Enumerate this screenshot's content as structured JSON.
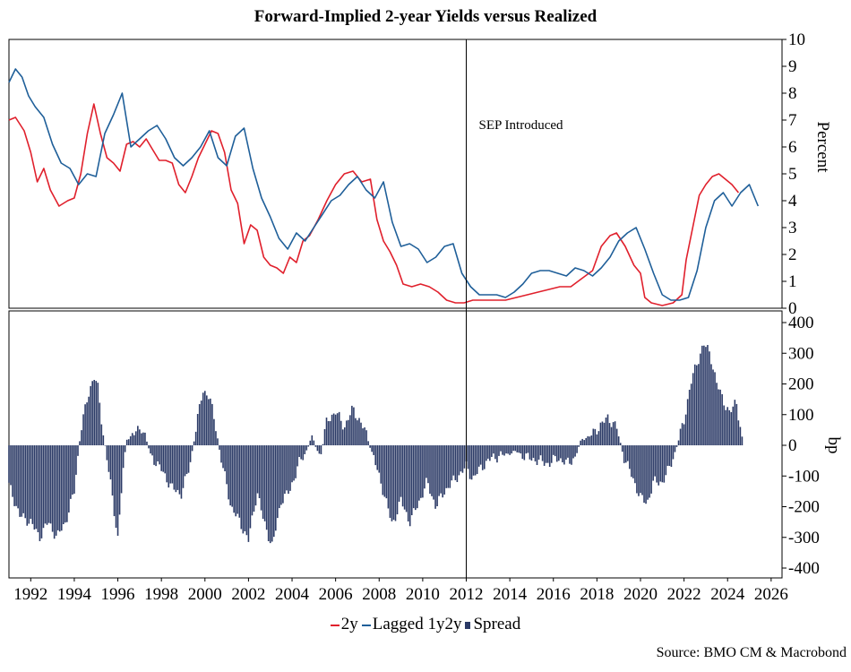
{
  "chart_data": {
    "title": "Forward-Implied 2-year Yields versus Realized",
    "source": "Source: BMO CM & Macrobond",
    "annotation": "SEP Introduced",
    "annotation_x": 2012.0,
    "x_ticks": [
      "1992",
      "1994",
      "1996",
      "1998",
      "2000",
      "2002",
      "2004",
      "2006",
      "2008",
      "2010",
      "2012",
      "2014",
      "2016",
      "2018",
      "2020",
      "2022",
      "2024",
      "2026"
    ],
    "xlim": [
      1991.0,
      2026.5
    ],
    "top_panel": {
      "type": "line",
      "ylabel": "Percent",
      "ylim": [
        0,
        10
      ],
      "y_ticks": [
        "0",
        "1",
        "2",
        "3",
        "4",
        "5",
        "6",
        "7",
        "8",
        "9",
        "10"
      ],
      "series": [
        {
          "name": "2y",
          "color": "#e0202c",
          "x": [
            1991.0,
            1991.3,
            1991.7,
            1992.0,
            1992.3,
            1992.6,
            1992.9,
            1993.3,
            1993.7,
            1994.0,
            1994.3,
            1994.6,
            1994.9,
            1995.2,
            1995.5,
            1995.8,
            1996.1,
            1996.4,
            1996.7,
            1997.0,
            1997.3,
            1997.6,
            1997.9,
            1998.2,
            1998.5,
            1998.8,
            1999.1,
            1999.4,
            1999.7,
            2000.0,
            2000.3,
            2000.6,
            2000.9,
            2001.2,
            2001.5,
            2001.8,
            2002.1,
            2002.4,
            2002.7,
            2003.0,
            2003.3,
            2003.6,
            2003.9,
            2004.2,
            2004.5,
            2004.8,
            2005.2,
            2005.6,
            2006.0,
            2006.4,
            2006.8,
            2007.2,
            2007.6,
            2007.9,
            2008.2,
            2008.5,
            2008.8,
            2009.1,
            2009.5,
            2009.9,
            2010.3,
            2010.7,
            2011.1,
            2011.5,
            2011.9,
            2012.3,
            2012.8,
            2013.3,
            2013.8,
            2014.3,
            2014.8,
            2015.3,
            2015.8,
            2016.3,
            2016.8,
            2017.3,
            2017.8,
            2018.2,
            2018.6,
            2018.9,
            2019.3,
            2019.7,
            2020.0,
            2020.2,
            2020.5,
            2021.0,
            2021.5,
            2021.9,
            2022.1,
            2022.4,
            2022.7,
            2023.0,
            2023.3,
            2023.6,
            2023.9,
            2024.2,
            2024.5
          ],
          "values": [
            7.0,
            7.1,
            6.6,
            5.8,
            4.7,
            5.2,
            4.4,
            3.8,
            4.0,
            4.1,
            5.0,
            6.5,
            7.6,
            6.5,
            5.6,
            5.4,
            5.1,
            6.1,
            6.2,
            6.0,
            6.3,
            5.9,
            5.5,
            5.5,
            5.4,
            4.6,
            4.3,
            4.9,
            5.6,
            6.1,
            6.6,
            6.5,
            5.8,
            4.4,
            3.9,
            2.4,
            3.1,
            2.9,
            1.9,
            1.6,
            1.5,
            1.3,
            1.9,
            1.7,
            2.5,
            2.7,
            3.3,
            4.0,
            4.6,
            5.0,
            5.1,
            4.7,
            4.8,
            3.3,
            2.5,
            2.1,
            1.6,
            0.9,
            0.8,
            0.9,
            0.8,
            0.6,
            0.3,
            0.2,
            0.2,
            0.3,
            0.3,
            0.3,
            0.3,
            0.4,
            0.5,
            0.6,
            0.7,
            0.8,
            0.8,
            1.1,
            1.4,
            2.3,
            2.7,
            2.8,
            2.3,
            1.6,
            1.3,
            0.4,
            0.2,
            0.1,
            0.2,
            0.5,
            1.8,
            3.0,
            4.2,
            4.6,
            4.9,
            5.0,
            4.8,
            4.6,
            4.3
          ]
        },
        {
          "name": "Lagged 1y2y",
          "color": "#1f5f99",
          "x": [
            1991.0,
            1991.3,
            1991.6,
            1991.9,
            1992.2,
            1992.6,
            1993.0,
            1993.4,
            1993.8,
            1994.2,
            1994.6,
            1995.0,
            1995.4,
            1995.8,
            1996.2,
            1996.6,
            1997.0,
            1997.4,
            1997.8,
            1998.2,
            1998.6,
            1999.0,
            1999.4,
            1999.8,
            2000.2,
            2000.6,
            2001.0,
            2001.4,
            2001.8,
            2002.2,
            2002.6,
            2003.0,
            2003.4,
            2003.8,
            2004.2,
            2004.6,
            2005.0,
            2005.4,
            2005.8,
            2006.2,
            2006.6,
            2007.0,
            2007.4,
            2007.8,
            2008.2,
            2008.6,
            2009.0,
            2009.4,
            2009.8,
            2010.2,
            2010.6,
            2011.0,
            2011.4,
            2011.8,
            2012.2,
            2012.6,
            2013.0,
            2013.4,
            2013.8,
            2014.2,
            2014.6,
            2015.0,
            2015.4,
            2015.8,
            2016.2,
            2016.6,
            2017.0,
            2017.4,
            2017.8,
            2018.2,
            2018.6,
            2019.0,
            2019.4,
            2019.8,
            2020.2,
            2020.6,
            2021.0,
            2021.4,
            2021.8,
            2022.2,
            2022.6,
            2023.0,
            2023.4,
            2023.8,
            2024.2,
            2024.6,
            2025.0,
            2025.4
          ],
          "values": [
            8.4,
            8.9,
            8.6,
            7.9,
            7.5,
            7.1,
            6.1,
            5.4,
            5.2,
            4.6,
            5.0,
            4.9,
            6.5,
            7.2,
            8.0,
            6.0,
            6.3,
            6.6,
            6.8,
            6.3,
            5.6,
            5.3,
            5.6,
            6.0,
            6.6,
            5.6,
            5.3,
            6.4,
            6.7,
            5.2,
            4.1,
            3.4,
            2.6,
            2.2,
            2.8,
            2.5,
            3.0,
            3.5,
            4.0,
            4.2,
            4.6,
            4.9,
            4.4,
            4.1,
            4.7,
            3.2,
            2.3,
            2.4,
            2.2,
            1.7,
            1.9,
            2.3,
            2.4,
            1.3,
            0.8,
            0.5,
            0.5,
            0.5,
            0.4,
            0.6,
            0.9,
            1.3,
            1.4,
            1.4,
            1.3,
            1.2,
            1.5,
            1.4,
            1.2,
            1.5,
            1.9,
            2.5,
            2.8,
            3.0,
            2.2,
            1.3,
            0.5,
            0.3,
            0.3,
            0.4,
            1.4,
            3.0,
            4.0,
            4.3,
            3.8,
            4.3,
            4.6,
            3.8
          ]
        }
      ]
    },
    "bottom_panel": {
      "type": "bar",
      "ylabel": "bp",
      "ylim": [
        -410,
        410
      ],
      "y_ticks": [
        "400",
        "300",
        "200",
        "100",
        "0",
        "-100",
        "-200",
        "-300",
        "-400"
      ],
      "series": [
        {
          "name": "Spread",
          "color": "#2b3a66",
          "anchors": [
            [
              1991.0,
              -130
            ],
            [
              1991.5,
              -230
            ],
            [
              1992.0,
              -250
            ],
            [
              1992.4,
              -300
            ],
            [
              1992.8,
              -250
            ],
            [
              1993.2,
              -300
            ],
            [
              1993.6,
              -250
            ],
            [
              1994.0,
              -150
            ],
            [
              1994.15,
              -50
            ],
            [
              1994.3,
              50
            ],
            [
              1994.6,
              150
            ],
            [
              1994.9,
              230
            ],
            [
              1995.1,
              180
            ],
            [
              1995.3,
              50
            ],
            [
              1995.5,
              -40
            ],
            [
              1995.8,
              -200
            ],
            [
              1996.0,
              -300
            ],
            [
              1996.2,
              -120
            ],
            [
              1996.4,
              20
            ],
            [
              1996.8,
              40
            ],
            [
              1997.1,
              60
            ],
            [
              1997.3,
              20
            ],
            [
              1997.5,
              -30
            ],
            [
              1998.0,
              -80
            ],
            [
              1998.5,
              -140
            ],
            [
              1998.9,
              -160
            ],
            [
              1999.3,
              -70
            ],
            [
              1999.6,
              60
            ],
            [
              1999.9,
              180
            ],
            [
              2000.2,
              160
            ],
            [
              2000.5,
              60
            ],
            [
              2000.7,
              -30
            ],
            [
              2001.2,
              -200
            ],
            [
              2001.6,
              -250
            ],
            [
              2002.0,
              -310
            ],
            [
              2002.4,
              -150
            ],
            [
              2002.7,
              -250
            ],
            [
              2003.1,
              -330
            ],
            [
              2003.5,
              -180
            ],
            [
              2003.9,
              -150
            ],
            [
              2004.3,
              -60
            ],
            [
              2004.6,
              -30
            ],
            [
              2004.9,
              30
            ],
            [
              2005.3,
              -40
            ],
            [
              2005.6,
              80
            ],
            [
              2006.0,
              110
            ],
            [
              2006.4,
              60
            ],
            [
              2006.8,
              120
            ],
            [
              2007.1,
              80
            ],
            [
              2007.4,
              40
            ],
            [
              2007.7,
              -30
            ],
            [
              2008.2,
              -150
            ],
            [
              2008.6,
              -260
            ],
            [
              2009.0,
              -180
            ],
            [
              2009.4,
              -250
            ],
            [
              2009.8,
              -190
            ],
            [
              2010.2,
              -120
            ],
            [
              2010.6,
              -200
            ],
            [
              2011.0,
              -150
            ],
            [
              2011.5,
              -110
            ],
            [
              2012.0,
              -70
            ],
            [
              2012.3,
              -110
            ],
            [
              2012.7,
              -70
            ],
            [
              2013.2,
              -40
            ],
            [
              2013.8,
              -30
            ],
            [
              2014.3,
              -20
            ],
            [
              2014.8,
              -40
            ],
            [
              2015.3,
              -50
            ],
            [
              2015.8,
              -60
            ],
            [
              2016.2,
              -40
            ],
            [
              2016.6,
              -60
            ],
            [
              2017.0,
              -40
            ],
            [
              2017.3,
              20
            ],
            [
              2017.7,
              30
            ],
            [
              2018.1,
              60
            ],
            [
              2018.5,
              90
            ],
            [
              2018.9,
              60
            ],
            [
              2019.2,
              -30
            ],
            [
              2019.6,
              -100
            ],
            [
              2020.0,
              -170
            ],
            [
              2020.3,
              -190
            ],
            [
              2020.6,
              -120
            ],
            [
              2021.0,
              -120
            ],
            [
              2021.3,
              -80
            ],
            [
              2021.6,
              -20
            ],
            [
              2022.0,
              80
            ],
            [
              2022.3,
              200
            ],
            [
              2022.6,
              270
            ],
            [
              2022.9,
              330
            ],
            [
              2023.2,
              300
            ],
            [
              2023.5,
              200
            ],
            [
              2023.8,
              150
            ],
            [
              2024.1,
              100
            ],
            [
              2024.4,
              150
            ],
            [
              2024.6,
              50
            ],
            [
              2024.7,
              10
            ]
          ]
        }
      ]
    },
    "legend": [
      {
        "label": "2y",
        "color": "#e0202c",
        "kind": "line"
      },
      {
        "label": "Lagged 1y2y",
        "color": "#1f5f99",
        "kind": "line"
      },
      {
        "label": "Spread",
        "color": "#2b3a66",
        "kind": "box"
      }
    ]
  }
}
